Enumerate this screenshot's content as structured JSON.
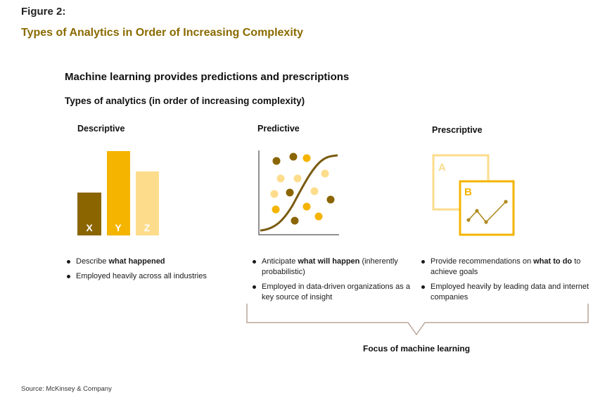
{
  "figure": {
    "label": "Figure 2:",
    "title": "Types of Analytics in Order of Increasing Complexity"
  },
  "headline": "Machine learning provides predictions and prescriptions",
  "subheading": "Types of analytics (in order of increasing complexity)",
  "columns": [
    {
      "title": "Descriptive",
      "icon": "bar-chart-icon",
      "bar_labels": [
        "X",
        "Y",
        "Z"
      ],
      "bullets": [
        {
          "pre": "Describe ",
          "bold": "what happened",
          "post": ""
        },
        {
          "pre": "Employed heavily across all industries",
          "bold": "",
          "post": ""
        }
      ]
    },
    {
      "title": "Predictive",
      "icon": "scatter-curve-icon",
      "bullets": [
        {
          "pre": "Anticipate ",
          "bold": "what will happen",
          "post": " (inherently probabilistic)"
        },
        {
          "pre": "Employed in data-driven organizations as a key source of insight",
          "bold": "",
          "post": ""
        }
      ]
    },
    {
      "title": "Prescriptive",
      "icon": "options-chart-icon",
      "box_labels": [
        "A",
        "B"
      ],
      "bullets": [
        {
          "pre": "Provide recommendations on ",
          "bold": "what to do",
          "post": " to achieve goals"
        },
        {
          "pre": "Employed heavily by leading data and internet companies",
          "bold": "",
          "post": ""
        }
      ]
    }
  ],
  "focus_label": "Focus of machine learning",
  "source": "Source: McKinsey & Company",
  "colors": {
    "dark_gold": "#8a6500",
    "gold": "#f4b400",
    "light_gold": "#fddc8c",
    "title_gold": "#8a6a00",
    "bracket": "#b8a59a"
  }
}
